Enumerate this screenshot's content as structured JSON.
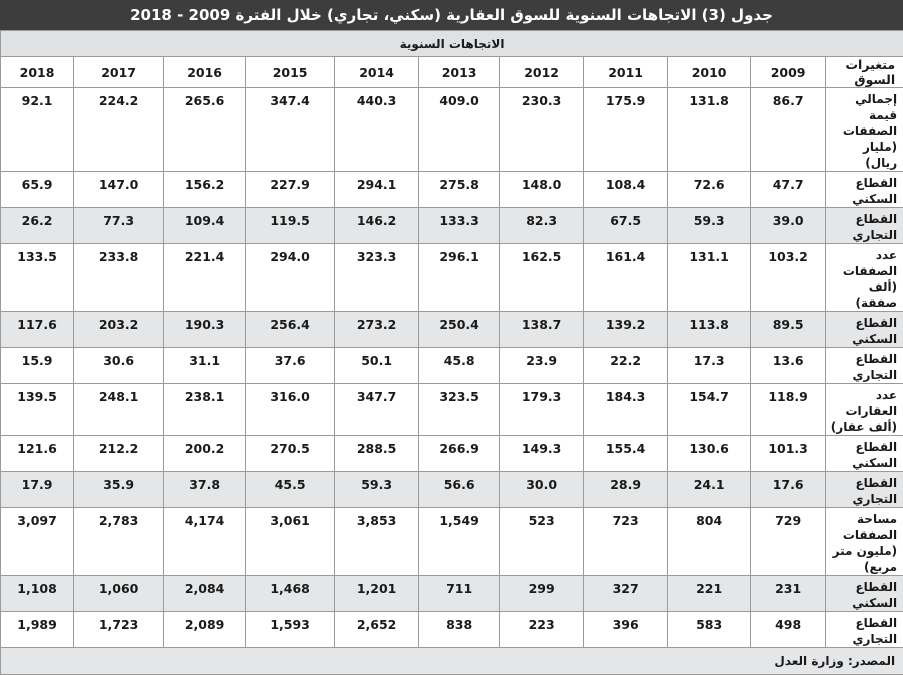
{
  "title": "جدول (3) الاتجاهات السنوية للسوق العقارية (سكني، تجاري) خلال الفترة 2009 - 2018",
  "subheader": "الاتجاهات السنوية",
  "columns": [
    "متغيرات السوق",
    "2009",
    "2010",
    "2011",
    "2012",
    "2013",
    "2014",
    "2015",
    "2016",
    "2017",
    "2018"
  ],
  "rows": [
    {
      "label": "إجمالي قيمة الصفقات (مليار ريال)",
      "values": [
        "86.7",
        "131.8",
        "175.9",
        "230.3",
        "409.0",
        "440.3",
        "347.4",
        "265.6",
        "224.2",
        "92.1"
      ]
    },
    {
      "label": "القطاع السكني",
      "values": [
        "47.7",
        "72.6",
        "108.4",
        "148.0",
        "275.8",
        "294.1",
        "227.9",
        "156.2",
        "147.0",
        "65.9"
      ]
    },
    {
      "label": "القطاع التجاري",
      "values": [
        "39.0",
        "59.3",
        "67.5",
        "82.3",
        "133.3",
        "146.2",
        "119.5",
        "109.4",
        "77.3",
        "26.2"
      ]
    },
    {
      "label": "عدد الصفقات (ألف صفقة)",
      "values": [
        "103.2",
        "131.1",
        "161.4",
        "162.5",
        "296.1",
        "323.3",
        "294.0",
        "221.4",
        "233.8",
        "133.5"
      ]
    },
    {
      "label": "القطاع السكني",
      "values": [
        "89.5",
        "113.8",
        "139.2",
        "138.7",
        "250.4",
        "273.2",
        "256.4",
        "190.3",
        "203.2",
        "117.6"
      ]
    },
    {
      "label": "القطاع التجاري",
      "values": [
        "13.6",
        "17.3",
        "22.2",
        "23.9",
        "45.8",
        "50.1",
        "37.6",
        "31.1",
        "30.6",
        "15.9"
      ]
    },
    {
      "label": "عدد العقارات (ألف عقار)",
      "values": [
        "118.9",
        "154.7",
        "184.3",
        "179.3",
        "323.5",
        "347.7",
        "316.0",
        "238.1",
        "248.1",
        "139.5"
      ]
    },
    {
      "label": "القطاع السكني",
      "values": [
        "101.3",
        "130.6",
        "155.4",
        "149.3",
        "266.9",
        "288.5",
        "270.5",
        "200.2",
        "212.2",
        "121.6"
      ]
    },
    {
      "label": "القطاع التجاري",
      "values": [
        "17.6",
        "24.1",
        "28.9",
        "30.0",
        "56.6",
        "59.3",
        "45.5",
        "37.8",
        "35.9",
        "17.9"
      ]
    },
    {
      "label": "مساحة الصفقات (مليون متر مربع)",
      "values": [
        "729",
        "804",
        "723",
        "523",
        "1,549",
        "3,853",
        "3,061",
        "4,174",
        "2,783",
        "3,097"
      ]
    },
    {
      "label": "القطاع السكني",
      "values": [
        "231",
        "221",
        "327",
        "299",
        "711",
        "1,201",
        "1,468",
        "2,084",
        "1,060",
        "1,108"
      ]
    },
    {
      "label": "القطاع التجاري",
      "values": [
        "498",
        "583",
        "396",
        "223",
        "838",
        "2,652",
        "1,593",
        "2,089",
        "1,723",
        "1,989"
      ]
    }
  ],
  "source": "المصدر: وزارة العدل",
  "colors": {
    "title_bg": "#3d3d3d",
    "title_text": "#ffffff",
    "shade": "#e4e6e8",
    "border": "#9a9a9a"
  }
}
